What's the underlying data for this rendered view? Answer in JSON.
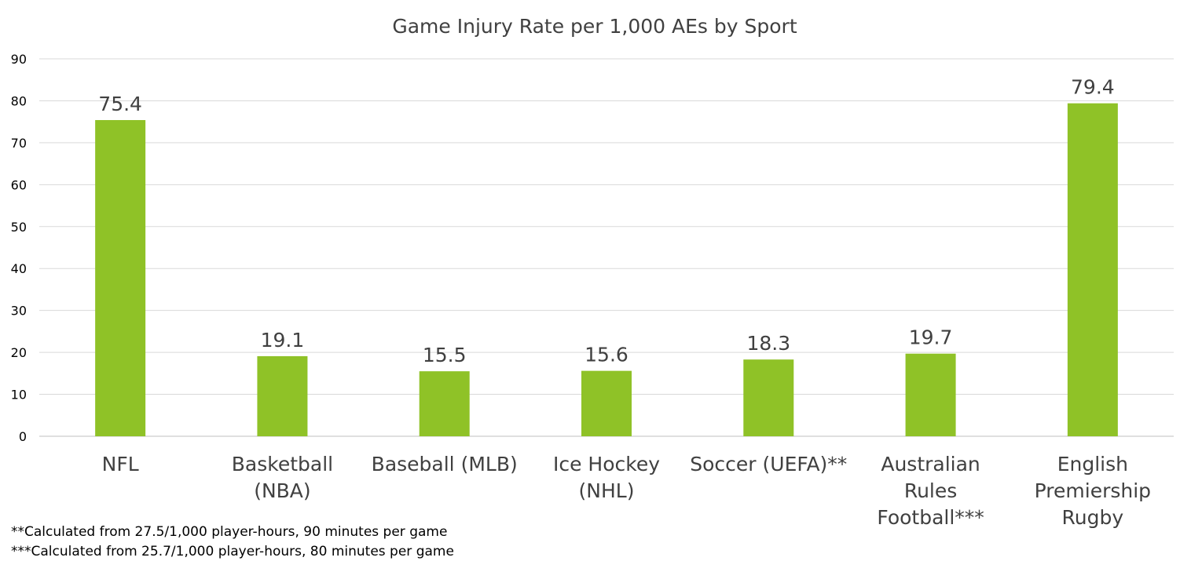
{
  "chart_data": {
    "type": "bar",
    "title": "Game Injury Rate per 1,000 AEs by Sport",
    "xlabel": "",
    "ylabel": "",
    "ylim": [
      0,
      90
    ],
    "yticks": [
      0,
      10,
      20,
      30,
      40,
      50,
      60,
      70,
      80,
      90
    ],
    "grid": true,
    "legend": "none",
    "categories": [
      [
        "NFL"
      ],
      [
        "Basketball",
        "(NBA)"
      ],
      [
        "Baseball (MLB)"
      ],
      [
        "Ice Hockey",
        "(NHL)"
      ],
      [
        "Soccer (UEFA)**"
      ],
      [
        "Australian",
        "Rules",
        "Football***"
      ],
      [
        "English",
        "Premiership",
        "Rugby"
      ]
    ],
    "values": [
      75.4,
      19.1,
      15.5,
      15.6,
      18.3,
      19.7,
      79.4
    ],
    "data_labels": [
      "75.4",
      "19.1",
      "15.5",
      "15.6",
      "18.3",
      "19.7",
      "79.4"
    ],
    "colors": {
      "bar": "#8fc227",
      "grid": "#d9d9d9",
      "text": "#404040"
    }
  },
  "footnotes": [
    "**Calculated from 27.5/1,000 player-hours, 90 minutes per game",
    "***Calculated from 25.7/1,000 player-hours, 80 minutes per game"
  ]
}
